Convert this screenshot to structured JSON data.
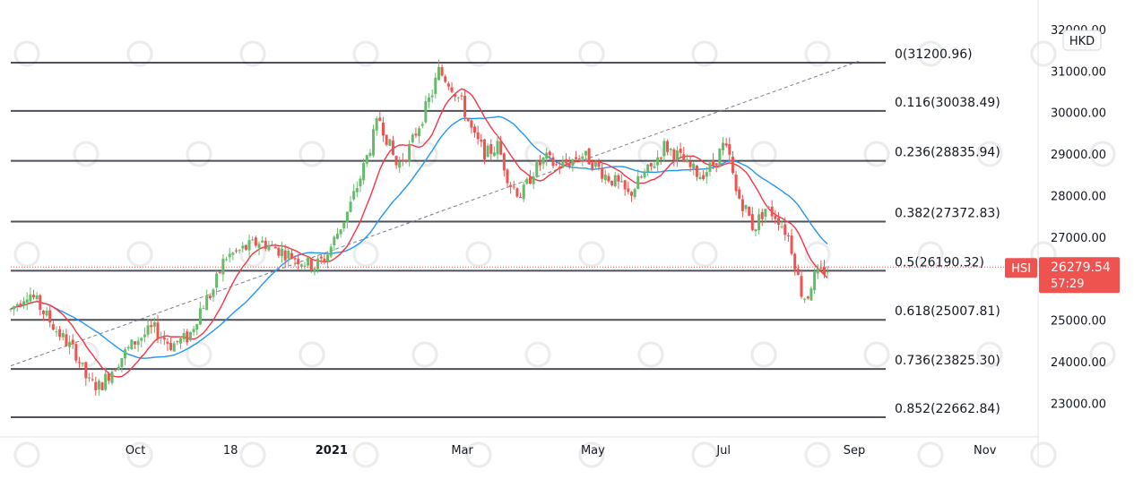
{
  "chart_data": {
    "type": "candlestick",
    "symbol": "HSI",
    "currency": "HKD",
    "last_price": "26279.54",
    "countdown": "57:29",
    "ylim": [
      22400,
      32300
    ],
    "y_ticks": [
      "32000.00",
      "31000.00",
      "30000.00",
      "29000.00",
      "28000.00",
      "27000.00",
      "25000.00",
      "24000.00",
      "23000.00"
    ],
    "x_ticks": [
      {
        "label": "Oct",
        "t": 27,
        "bold": false
      },
      {
        "label": "18",
        "t": 43,
        "bold": false
      },
      {
        "label": "2021",
        "t": 60,
        "bold": true
      },
      {
        "label": "Mar",
        "t": 82,
        "bold": false
      },
      {
        "label": "May",
        "t": 104,
        "bold": false
      },
      {
        "label": "Jul",
        "t": 126,
        "bold": false
      },
      {
        "label": "Sep",
        "t": 148,
        "bold": false
      },
      {
        "label": "Nov",
        "t": 170,
        "bold": false
      }
    ],
    "t_range": [
      6,
      172
    ],
    "fib_levels": [
      {
        "label": "0(31200.96)",
        "value": 31200.96
      },
      {
        "label": "0.116(30038.49)",
        "value": 30038.49
      },
      {
        "label": "0.236(28835.94)",
        "value": 28835.94
      },
      {
        "label": "0.382(27372.83)",
        "value": 27372.83
      },
      {
        "label": "0.5(26190.32)",
        "value": 26190.32
      },
      {
        "label": "0.618(25007.81)",
        "value": 25007.81
      },
      {
        "label": "0.736(23825.30)",
        "value": 23825.3
      },
      {
        "label": "0.852(22662.84)",
        "value": 22662.84
      }
    ],
    "trendline": {
      "from": {
        "t": 6,
        "v": 23900
      },
      "to": {
        "t": 149,
        "v": 31250
      }
    },
    "price_path": [
      [
        6,
        25250
      ],
      [
        9,
        25700
      ],
      [
        11,
        25300
      ],
      [
        14,
        24700
      ],
      [
        17,
        24200
      ],
      [
        19,
        23500
      ],
      [
        21,
        23400
      ],
      [
        24,
        24000
      ],
      [
        27,
        24500
      ],
      [
        30,
        24800
      ],
      [
        33,
        24400
      ],
      [
        36,
        24600
      ],
      [
        38,
        25300
      ],
      [
        40,
        25700
      ],
      [
        42,
        26500
      ],
      [
        45,
        26700
      ],
      [
        48,
        26900
      ],
      [
        51,
        26700
      ],
      [
        54,
        26500
      ],
      [
        57,
        26300
      ],
      [
        59,
        26500
      ],
      [
        61,
        27100
      ],
      [
        63,
        27700
      ],
      [
        65,
        28500
      ],
      [
        67,
        29400
      ],
      [
        68,
        29900
      ],
      [
        69,
        29500
      ],
      [
        71,
        28700
      ],
      [
        73,
        29100
      ],
      [
        75,
        29800
      ],
      [
        77,
        30500
      ],
      [
        78,
        31000
      ],
      [
        80,
        30700
      ],
      [
        82,
        30200
      ],
      [
        84,
        29400
      ],
      [
        86,
        29000
      ],
      [
        88,
        29200
      ],
      [
        90,
        28300
      ],
      [
        92,
        28000
      ],
      [
        94,
        28600
      ],
      [
        96,
        28900
      ],
      [
        98,
        28700
      ],
      [
        100,
        28800
      ],
      [
        102,
        29000
      ],
      [
        104,
        28800
      ],
      [
        106,
        28500
      ],
      [
        108,
        28300
      ],
      [
        110,
        28000
      ],
      [
        112,
        28400
      ],
      [
        114,
        28700
      ],
      [
        116,
        29200
      ],
      [
        118,
        29000
      ],
      [
        120,
        28700
      ],
      [
        122,
        28500
      ],
      [
        124,
        28700
      ],
      [
        126,
        29200
      ],
      [
        127,
        28900
      ],
      [
        128,
        28100
      ],
      [
        130,
        27600
      ],
      [
        131,
        27200
      ],
      [
        133,
        27700
      ],
      [
        135,
        27500
      ],
      [
        137,
        27000
      ],
      [
        138,
        26400
      ],
      [
        139,
        25700
      ],
      [
        140,
        25500
      ],
      [
        141,
        26000
      ],
      [
        142,
        26100
      ],
      [
        143,
        26200
      ],
      [
        144,
        26280
      ]
    ],
    "colors": {
      "up": "#26a69a",
      "up_body": "#66bb6a",
      "down": "#ef5350",
      "ma_fast": "#f23645",
      "ma_slow": "#2196f3",
      "fib_line": "#131722",
      "trendline": "#787b86",
      "price_line": "#ef5350"
    }
  }
}
